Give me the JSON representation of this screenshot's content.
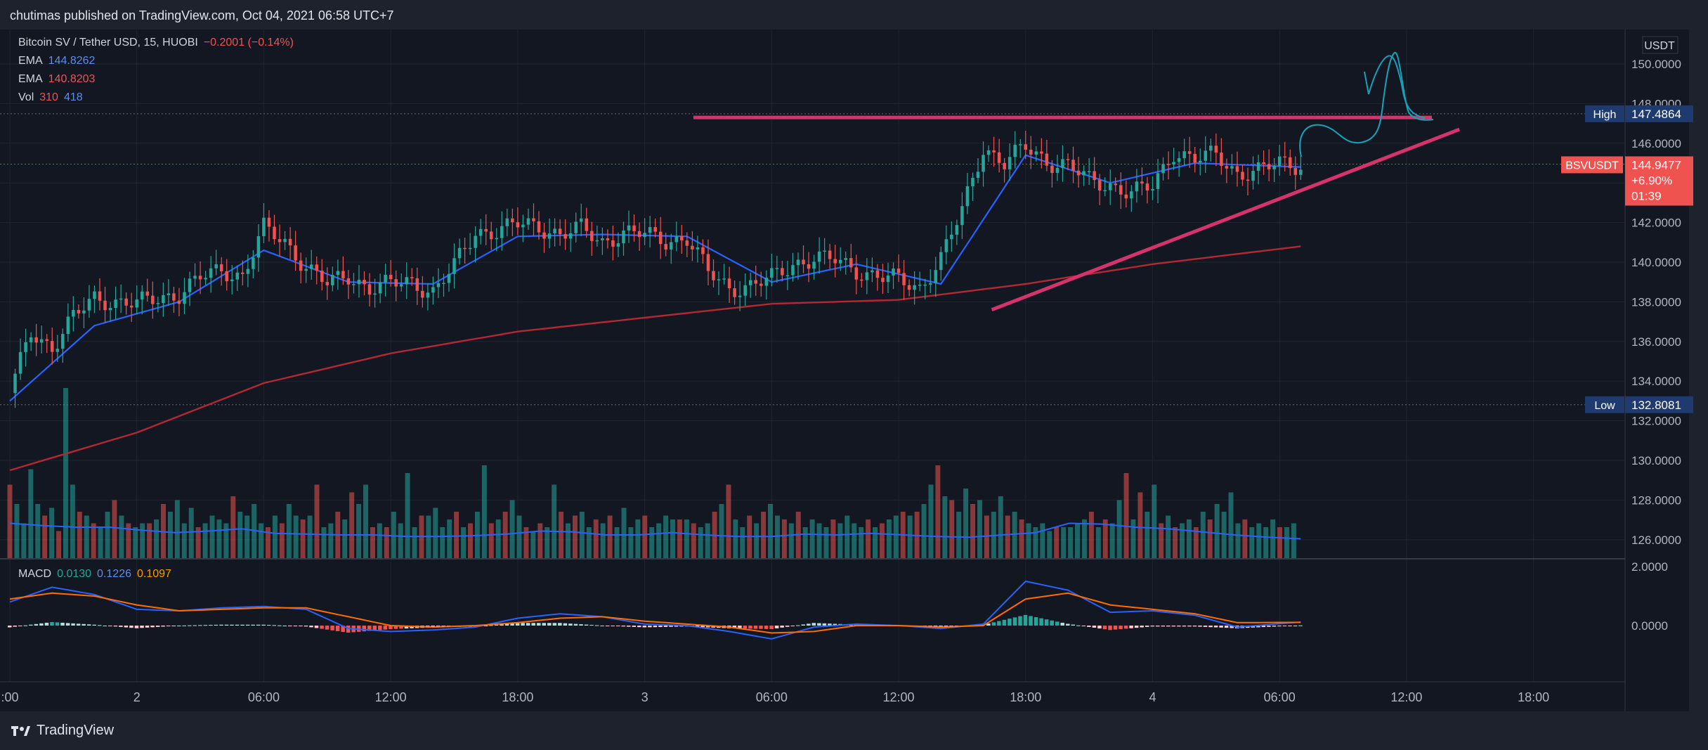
{
  "header": {
    "publish_line": "chutimas published on TradingView.com, Oct 04, 2021 06:58 UTC+7"
  },
  "footer": {
    "brand": "TradingView"
  },
  "legend": {
    "symbol": "Bitcoin SV / Tether USD, 15, HUOBI",
    "change": "−0.2001 (−0.14%)",
    "ema1_label": "EMA",
    "ema1_value": "144.8262",
    "ema2_label": "EMA",
    "ema2_value": "140.8203",
    "vol_label": "Vol",
    "vol_value1": "310",
    "vol_value2": "418",
    "macd_label": "MACD",
    "macd_hist": "0.0130",
    "macd_line": "0.1226",
    "macd_signal": "0.1097"
  },
  "colors": {
    "up": "#26a69a",
    "down": "#ef5350",
    "ema_fast": "#2962ff",
    "ema_slow": "#b22833",
    "trendline": "#d6336c",
    "sketch": "#17a2b8",
    "macd_line": "#2962ff",
    "signal_line": "#ff6d00",
    "background": "#131722"
  },
  "chart_data": {
    "type": "candlestick",
    "title": "Bitcoin SV / Tether USD, 15, HUOBI",
    "price_axis": {
      "unit": "USDT",
      "ylim": [
        125,
        151
      ],
      "ticks": [
        "150.0000",
        "148.0000",
        "146.0000",
        "144.0000",
        "142.0000",
        "140.0000",
        "138.0000",
        "136.0000",
        "134.0000",
        "132.0000",
        "130.0000",
        "128.0000",
        "126.0000"
      ],
      "tick_values": [
        150,
        148,
        146,
        144,
        142,
        140,
        138,
        136,
        134,
        132,
        130,
        128,
        126
      ]
    },
    "macd_axis": {
      "ticks": [
        "2.0000",
        "0.0000"
      ],
      "tick_values": [
        2,
        0
      ],
      "ylim": [
        -1.0,
        2.4
      ]
    },
    "time_axis": {
      "labels": [
        ":00",
        "2",
        "06:00",
        "12:00",
        "18:00",
        "3",
        "06:00",
        "12:00",
        "18:00",
        "4",
        "06:00",
        "12:00",
        "18:00"
      ],
      "hours": [
        0,
        6,
        12,
        18,
        24,
        30,
        36,
        42,
        48,
        54,
        60,
        66,
        72
      ]
    },
    "price_path": {
      "hours": [
        0,
        1,
        2,
        3,
        4,
        5,
        6,
        7,
        8,
        9,
        10,
        11,
        12,
        13,
        14,
        15,
        16,
        17,
        18,
        19,
        20,
        21,
        22,
        23,
        24,
        25,
        26,
        27,
        28,
        29,
        30,
        31,
        32,
        33,
        34,
        35,
        36,
        37,
        38,
        39,
        40,
        41,
        42,
        43,
        44,
        45,
        46,
        47,
        48,
        49,
        50,
        51,
        52,
        53,
        54,
        55,
        56,
        57,
        58,
        59,
        60,
        61
      ],
      "close": [
        133.4,
        136.5,
        135.7,
        137.2,
        138.2,
        138.0,
        137.9,
        138.2,
        138.4,
        139.2,
        139.6,
        139.3,
        141.7,
        141.0,
        139.8,
        138.9,
        139.3,
        138.7,
        138.9,
        139.0,
        138.5,
        139.8,
        141.5,
        141.6,
        141.9,
        141.8,
        141.4,
        141.7,
        141.0,
        141.5,
        141.4,
        141.1,
        141.2,
        139.5,
        138.7,
        138.8,
        139.2,
        139.9,
        140.2,
        140.1,
        139.6,
        139.3,
        139.1,
        138.7,
        140.2,
        142.6,
        145.8,
        145.0,
        145.8,
        145.1,
        144.9,
        144.1,
        143.9,
        143.5,
        143.8,
        145.6,
        145.2,
        145.4,
        144.5,
        144.6,
        145.0,
        144.9
      ]
    },
    "series": [
      {
        "name": "EMA",
        "value_label": "144.8262",
        "hours": [
          0,
          4,
          8,
          12,
          16,
          20,
          24,
          28,
          32,
          36,
          40,
          44,
          48,
          52,
          56,
          61
        ],
        "values": [
          133.0,
          136.8,
          138.0,
          140.6,
          139.0,
          138.9,
          141.3,
          141.4,
          141.3,
          139.0,
          139.9,
          138.9,
          145.4,
          144.0,
          145.0,
          144.8
        ]
      },
      {
        "name": "EMA",
        "value_label": "140.8203",
        "hours": [
          0,
          6,
          12,
          18,
          24,
          30,
          36,
          42,
          48,
          54,
          61
        ],
        "values": [
          129.5,
          131.4,
          133.9,
          135.4,
          136.5,
          137.2,
          137.9,
          138.1,
          138.9,
          139.9,
          140.8
        ]
      }
    ],
    "volume": {
      "values": [
        95,
        70,
        45,
        115,
        70,
        55,
        65,
        35,
        220,
        95,
        60,
        55,
        45,
        40,
        60,
        75,
        55,
        45,
        40,
        45,
        45,
        50,
        70,
        60,
        75,
        45,
        65,
        40,
        45,
        55,
        50,
        45,
        80,
        60,
        55,
        70,
        45,
        40,
        55,
        45,
        70,
        55,
        50,
        55,
        95,
        40,
        45,
        60,
        50,
        85,
        70,
        95,
        40,
        45,
        40,
        60,
        45,
        110,
        40,
        55,
        55,
        65,
        40,
        50,
        60,
        40,
        45,
        60,
        120,
        45,
        50,
        60,
        75,
        55,
        40,
        35,
        45,
        40,
        95,
        60,
        45,
        55,
        60,
        40,
        50,
        45,
        55,
        40,
        65,
        40,
        50,
        55,
        40,
        45,
        55,
        50,
        50,
        50,
        45,
        40,
        45,
        60,
        70,
        95,
        50,
        40,
        55,
        45,
        60,
        70,
        55,
        50,
        45,
        60,
        40,
        50,
        45,
        40,
        50,
        45,
        55,
        45,
        40,
        50,
        40,
        45,
        50,
        55,
        60,
        55,
        60,
        70,
        95,
        120,
        80,
        75,
        60,
        90,
        70,
        75,
        55,
        60,
        80,
        55,
        60,
        50,
        45,
        40,
        45,
        35,
        40,
        40,
        40,
        45,
        50,
        60,
        40,
        50,
        45,
        75,
        110,
        50,
        85,
        60,
        95,
        45,
        55,
        40,
        45,
        50,
        40,
        60,
        50,
        70,
        60,
        85,
        45,
        50,
        40,
        45,
        40,
        50,
        40,
        40,
        45
      ],
      "volume_ma": [
        45,
        42,
        40,
        40,
        36,
        33,
        35,
        38,
        32,
        31,
        30,
        30,
        28,
        28,
        29,
        31,
        35,
        34,
        30,
        30,
        33,
        30,
        28,
        28,
        31,
        30,
        32,
        30,
        28,
        27,
        30,
        33,
        45,
        44,
        40,
        38,
        34,
        30,
        27,
        25
      ]
    },
    "macd": {
      "hours": [
        0,
        2,
        4,
        6,
        8,
        10,
        12,
        14,
        16,
        18,
        20,
        22,
        24,
        26,
        28,
        30,
        32,
        34,
        36,
        38,
        40,
        42,
        44,
        46,
        48,
        50,
        52,
        54,
        56,
        58,
        61
      ],
      "macd": [
        0.8,
        1.3,
        1.05,
        0.55,
        0.5,
        0.6,
        0.65,
        0.55,
        -0.1,
        -0.2,
        -0.15,
        -0.05,
        0.25,
        0.4,
        0.3,
        0.05,
        0.0,
        -0.2,
        -0.45,
        -0.05,
        0.05,
        0.0,
        -0.1,
        0.05,
        1.5,
        1.2,
        0.45,
        0.5,
        0.35,
        -0.05,
        0.12
      ],
      "signal": [
        0.9,
        1.1,
        1.0,
        0.7,
        0.5,
        0.55,
        0.6,
        0.6,
        0.3,
        0.0,
        -0.05,
        0.0,
        0.1,
        0.25,
        0.3,
        0.15,
        0.05,
        -0.05,
        -0.25,
        -0.2,
        0.0,
        0.0,
        -0.05,
        0.0,
        0.9,
        1.1,
        0.7,
        0.55,
        0.4,
        0.1,
        0.11
      ]
    },
    "price_labels": [
      {
        "name": "High",
        "value": 147.4864,
        "text": "147.4864"
      },
      {
        "name": "Low",
        "value": 132.8081,
        "text": "132.8081"
      },
      {
        "name": "BSVUSDT",
        "value": 144.9477,
        "lines": [
          "144.9477",
          "+6.90%",
          "01:39"
        ]
      }
    ],
    "drawings": {
      "resistance_line": {
        "from": {
          "hour": 32.3,
          "price": 147.3
        },
        "to": {
          "hour": 67.2,
          "price": 147.3
        }
      },
      "rising_trendline": {
        "from": {
          "hour": 46.4,
          "price": 137.6
        },
        "to": {
          "hour": 68.5,
          "price": 146.7
        }
      }
    },
    "grid": true
  }
}
